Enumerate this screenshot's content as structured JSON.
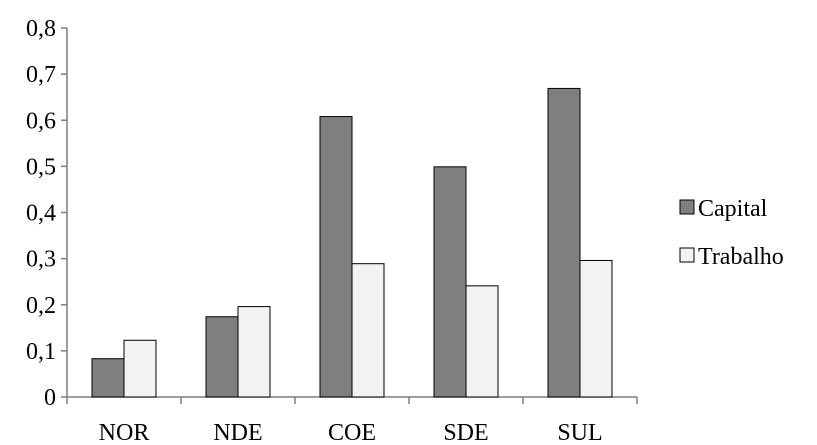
{
  "chart_data": {
    "type": "bar",
    "categories": [
      "NOR",
      "NDE",
      "COE",
      "SDE",
      "SUL"
    ],
    "series": [
      {
        "name": "Capital",
        "values": [
          0.083,
          0.174,
          0.608,
          0.499,
          0.669
        ],
        "color": "#7f7f7f"
      },
      {
        "name": "Trabalho",
        "values": [
          0.123,
          0.196,
          0.289,
          0.241,
          0.296
        ],
        "color": "#f2f2f2"
      }
    ],
    "y_ticks": [
      "0",
      "0,1",
      "0,2",
      "0,3",
      "0,4",
      "0,5",
      "0,6",
      "0,7",
      "0,8"
    ],
    "ylim": [
      0,
      0.8
    ],
    "grid": false,
    "legend_position": "right"
  }
}
